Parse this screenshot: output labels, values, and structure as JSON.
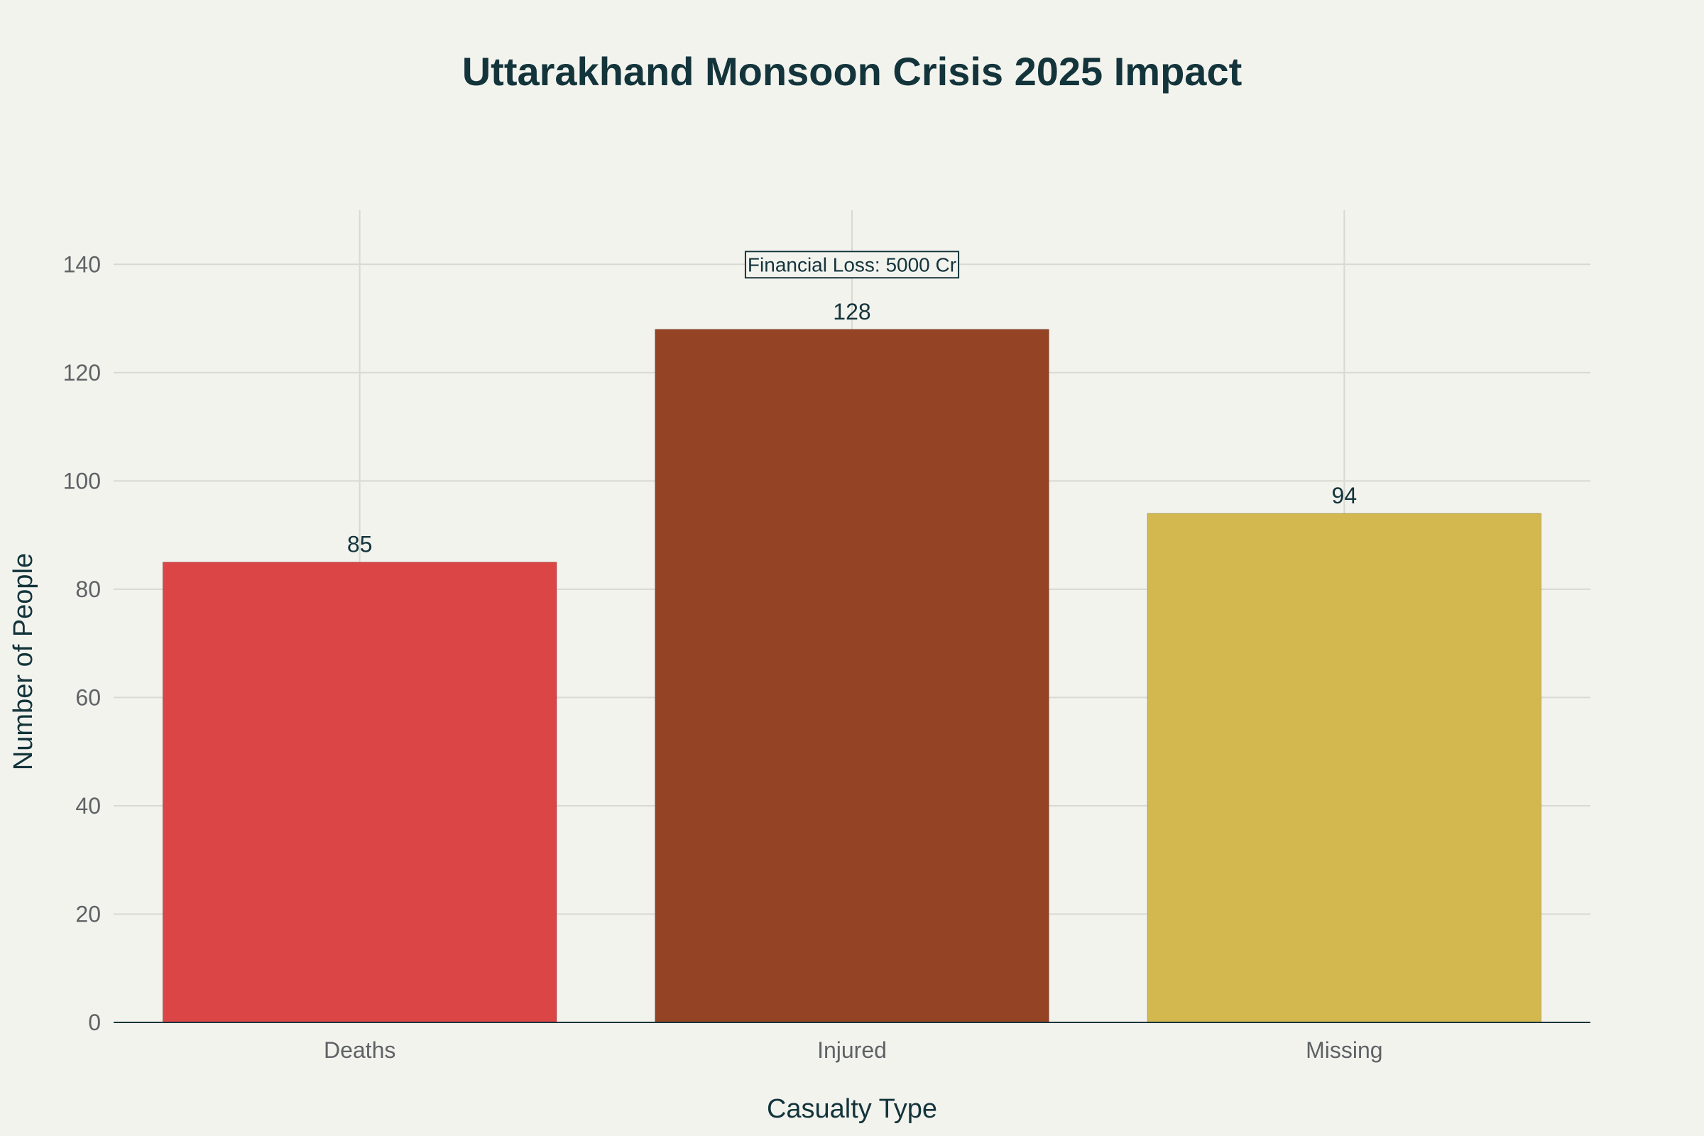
{
  "chart_data": {
    "type": "bar",
    "title": "Uttarakhand Monsoon Crisis 2025 Impact",
    "xlabel": "Casualty Type",
    "ylabel": "Number of People",
    "categories": [
      "Deaths",
      "Injured",
      "Missing"
    ],
    "values": [
      85,
      128,
      94
    ],
    "data_labels": [
      "85",
      "128",
      "94"
    ],
    "colors": [
      "#db4545",
      "#944325",
      "#d2b84f"
    ],
    "ylim": [
      0,
      150
    ],
    "yticks": [
      0,
      20,
      40,
      60,
      80,
      100,
      120,
      140
    ],
    "ytick_labels": [
      "0",
      "20",
      "40",
      "60",
      "80",
      "100",
      "120",
      "140"
    ],
    "grid": true,
    "legend": "none",
    "annotation": {
      "text": "Financial Loss: 5000 Cr",
      "category": "Injured",
      "y": 140
    }
  },
  "style": {
    "background": "#f3f3ee",
    "grid_color": "#d9d9d4",
    "axis_color": "#13343b",
    "text_color": "#13343b",
    "tick_color": "#5f6265"
  }
}
